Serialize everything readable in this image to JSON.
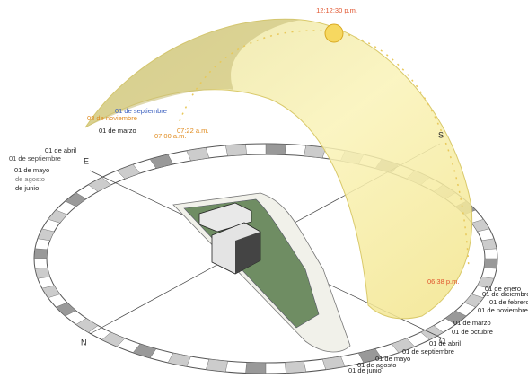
{
  "sun": {
    "time": "12:12:30 p.m."
  },
  "compass": {
    "east": "E",
    "south": "S",
    "west": "O",
    "north": "N"
  },
  "times": [
    "07:22 a.m.",
    "07:00 a.m.",
    "06:38 p.m."
  ],
  "left_labels": [
    "01 de septiembre",
    "08 de noviembre",
    "01 de marzo",
    "01 de abril",
    "01 de septiembre",
    "01 de mayo",
    "de agosto",
    "de junio"
  ],
  "right_labels": [
    "01 de enero",
    "01 de diciembre",
    "01 de febrero",
    "01 de noviembre",
    "01 de marzo",
    "01 de octubre",
    "01 de abril",
    "01 de septiembre",
    "01 de mayo",
    "01 de agosto",
    "01 de junio"
  ]
}
